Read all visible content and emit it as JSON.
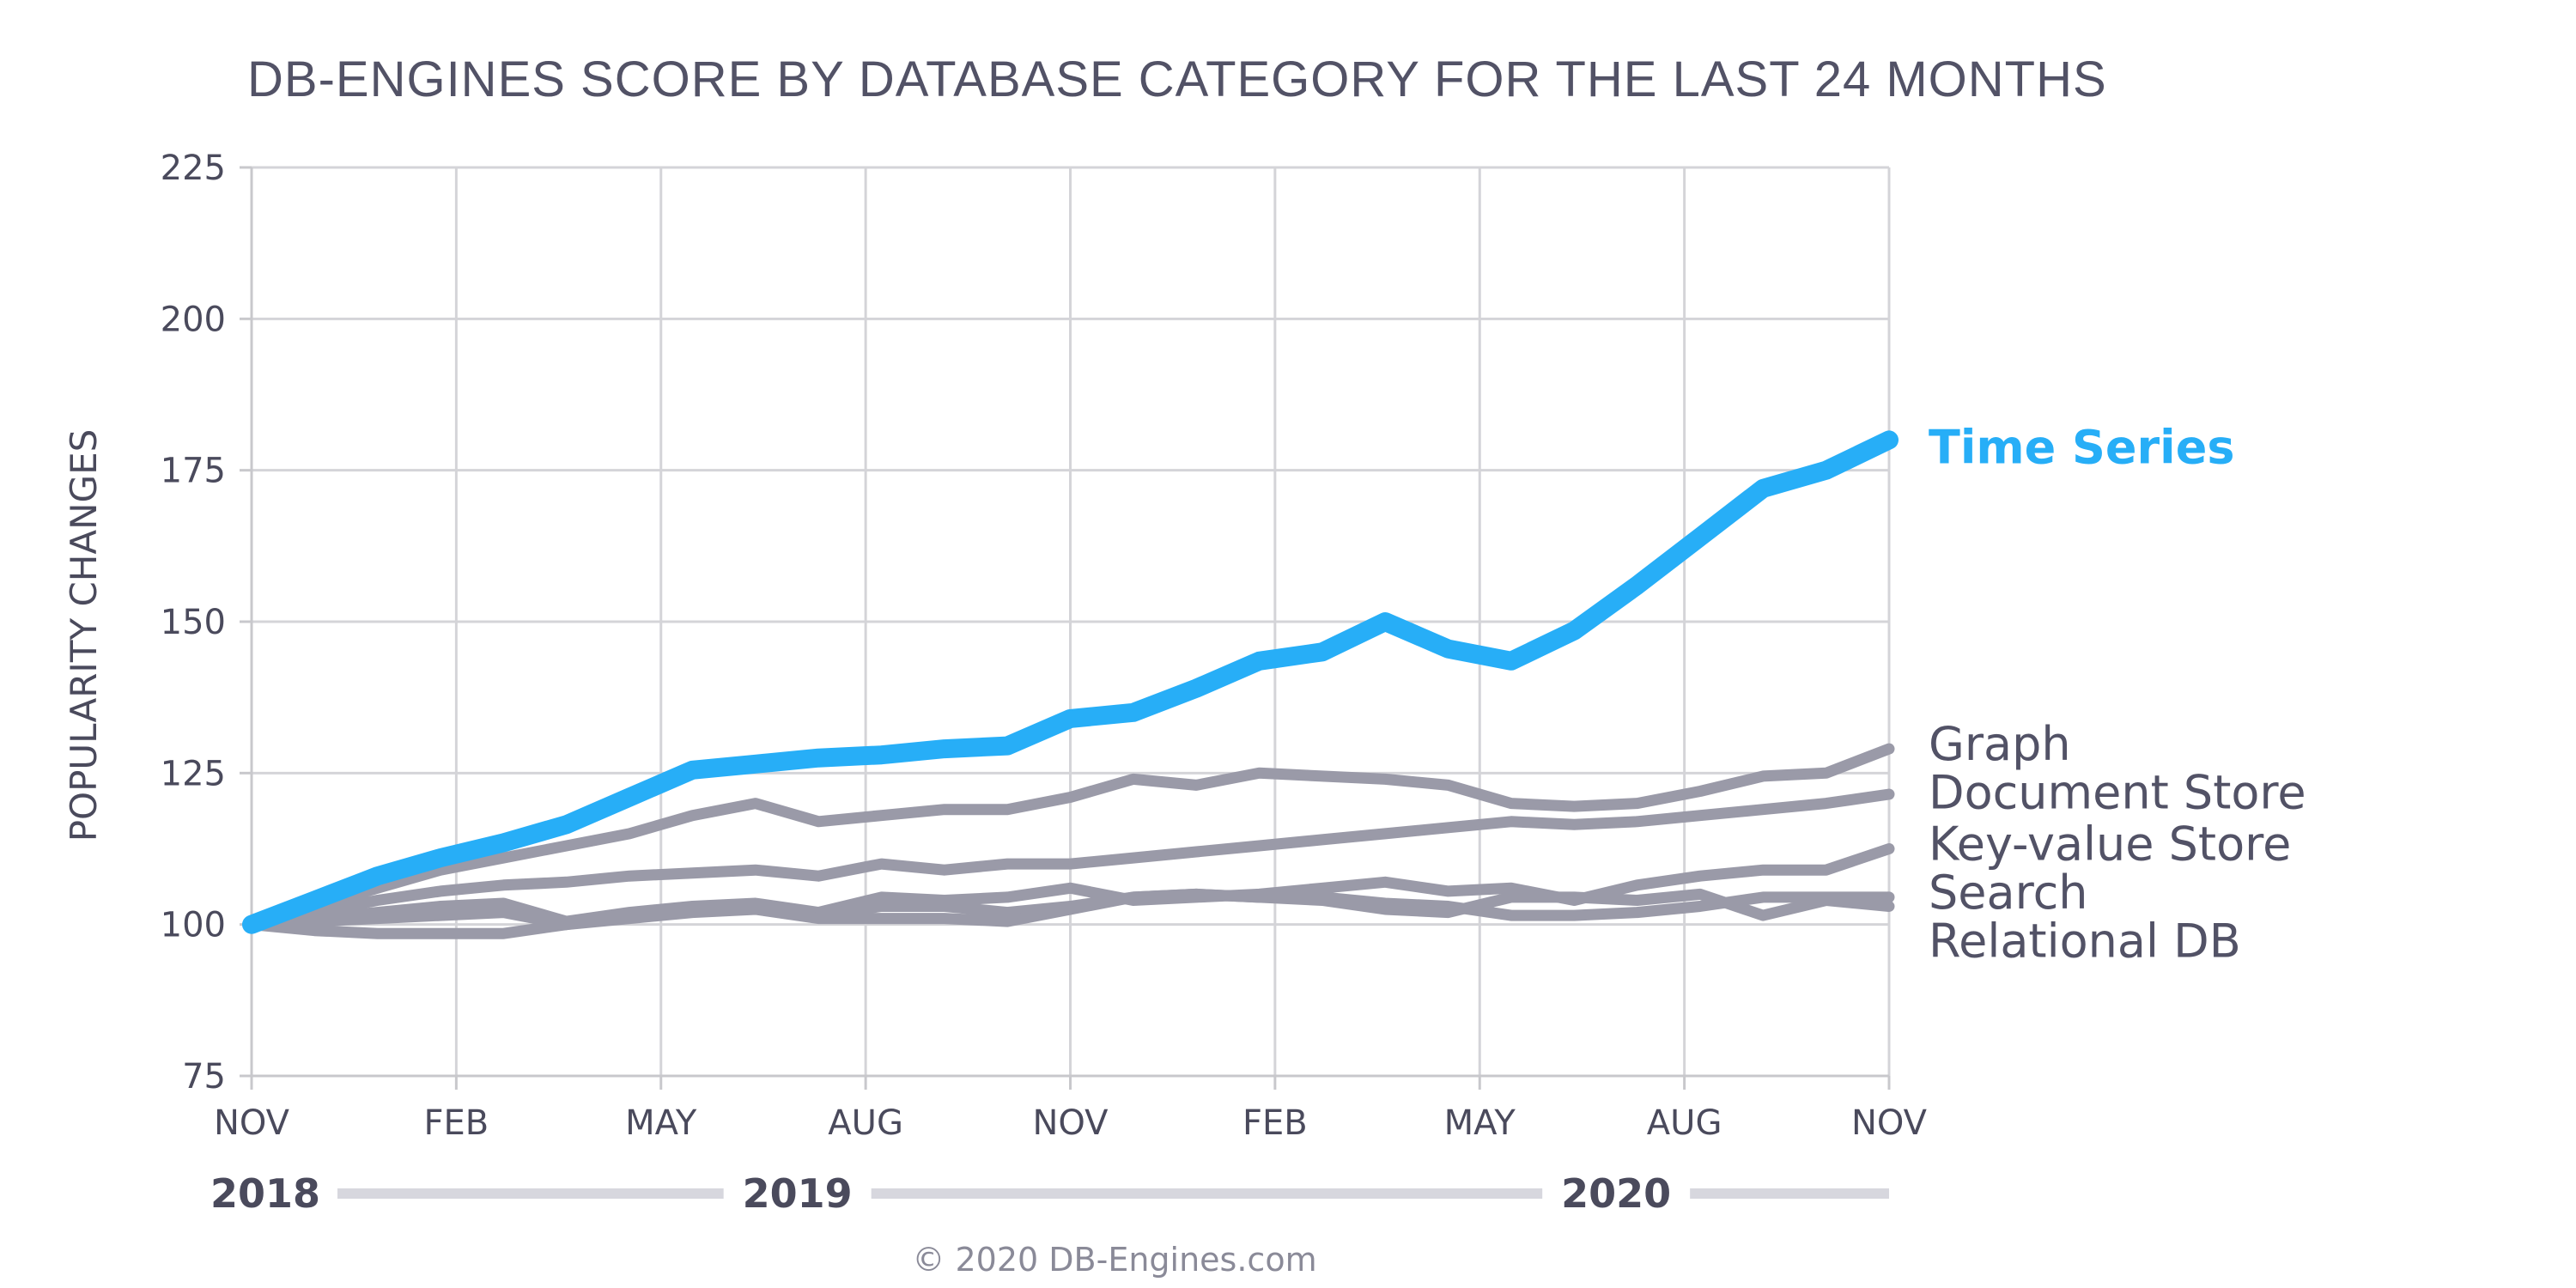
{
  "chart_data": {
    "type": "line",
    "title": "DB-ENGINES SCORE BY DATABASE CATEGORY FOR THE LAST 24 MONTHS",
    "xlabel": "",
    "ylabel": "POPULARITY CHANGES",
    "ylim": [
      75,
      225
    ],
    "yticks": [
      75,
      100,
      125,
      150,
      175,
      200,
      225
    ],
    "x_range": [
      0,
      24
    ],
    "xticks": [
      {
        "x": 0,
        "label": "NOV"
      },
      {
        "x": 3,
        "label": "FEB"
      },
      {
        "x": 6,
        "label": "MAY"
      },
      {
        "x": 9,
        "label": "AUG"
      },
      {
        "x": 12,
        "label": "NOV"
      },
      {
        "x": 15,
        "label": "FEB"
      },
      {
        "x": 18,
        "label": "MAY"
      },
      {
        "x": 21,
        "label": "AUG"
      },
      {
        "x": 24,
        "label": "NOV"
      }
    ],
    "years": [
      {
        "label": "2018",
        "x": 0
      },
      {
        "label": "2019",
        "x": 8
      },
      {
        "label": "2020",
        "x": 20
      }
    ],
    "grid": true,
    "series": [
      {
        "name": "Time Series",
        "highlight": true,
        "color": "#27aef7",
        "values": [
          100,
          104,
          108,
          111,
          113.5,
          116.5,
          121,
          125.5,
          126.5,
          127.5,
          128,
          129,
          129.5,
          134,
          135,
          139,
          143.5,
          145,
          150,
          145.5,
          143.5,
          148.5,
          156,
          164,
          172,
          175,
          180
        ]
      },
      {
        "name": "Graph",
        "highlight": false,
        "color": "#9a9aa8",
        "values": [
          100,
          103,
          106,
          109,
          111,
          113,
          115,
          118,
          120,
          117,
          118,
          119,
          119,
          121,
          124,
          123,
          125,
          124.5,
          124,
          123,
          120,
          119.5,
          120,
          122,
          124.5,
          125,
          129
        ]
      },
      {
        "name": "Document Store",
        "highlight": false,
        "color": "#9a9aa8",
        "values": [
          100,
          102,
          104,
          105.5,
          106.5,
          107,
          108,
          108.5,
          109,
          108,
          110,
          109,
          110,
          110,
          111,
          112,
          113,
          114,
          115,
          116,
          117,
          116.5,
          117,
          118,
          119,
          120,
          121.5
        ]
      },
      {
        "name": "Key-value Store",
        "highlight": false,
        "color": "#9a9aa8",
        "values": [
          100,
          101,
          102,
          103,
          103.5,
          100.5,
          102,
          103,
          103.5,
          102,
          104.5,
          104,
          104.5,
          106,
          104,
          104.5,
          105,
          106,
          107,
          105.5,
          106,
          104,
          106.5,
          108,
          109,
          109,
          112.5
        ]
      },
      {
        "name": "Search",
        "highlight": false,
        "color": "#9a9aa8",
        "values": [
          100,
          100.5,
          101,
          101.5,
          102,
          100,
          101.5,
          102.5,
          103,
          101.5,
          103,
          103,
          102,
          103,
          104.5,
          105,
          104.5,
          104.5,
          103.5,
          103,
          101.5,
          101.5,
          102,
          103,
          104.5,
          104.5,
          104.5
        ]
      },
      {
        "name": "Relational DB",
        "highlight": false,
        "color": "#9a9aa8",
        "values": [
          100,
          99,
          98.5,
          98.5,
          98.5,
          100,
          101,
          102,
          102.5,
          101,
          101,
          101,
          100.5,
          102.5,
          104.5,
          105,
          104.5,
          104,
          102.5,
          102,
          104.5,
          104.5,
          104,
          105,
          101.5,
          104,
          103
        ]
      }
    ],
    "legend": [
      {
        "label": "Time Series",
        "value": 179
      },
      {
        "label": "Graph",
        "value": 130
      },
      {
        "label": "Document Store",
        "value": 122
      },
      {
        "label": "Key-value Store",
        "value": 113.5
      },
      {
        "label": "Search",
        "value": 105.5
      },
      {
        "label": "Relational DB",
        "value": 97.5
      }
    ]
  },
  "credit": "© 2020 DB-Engines.com"
}
